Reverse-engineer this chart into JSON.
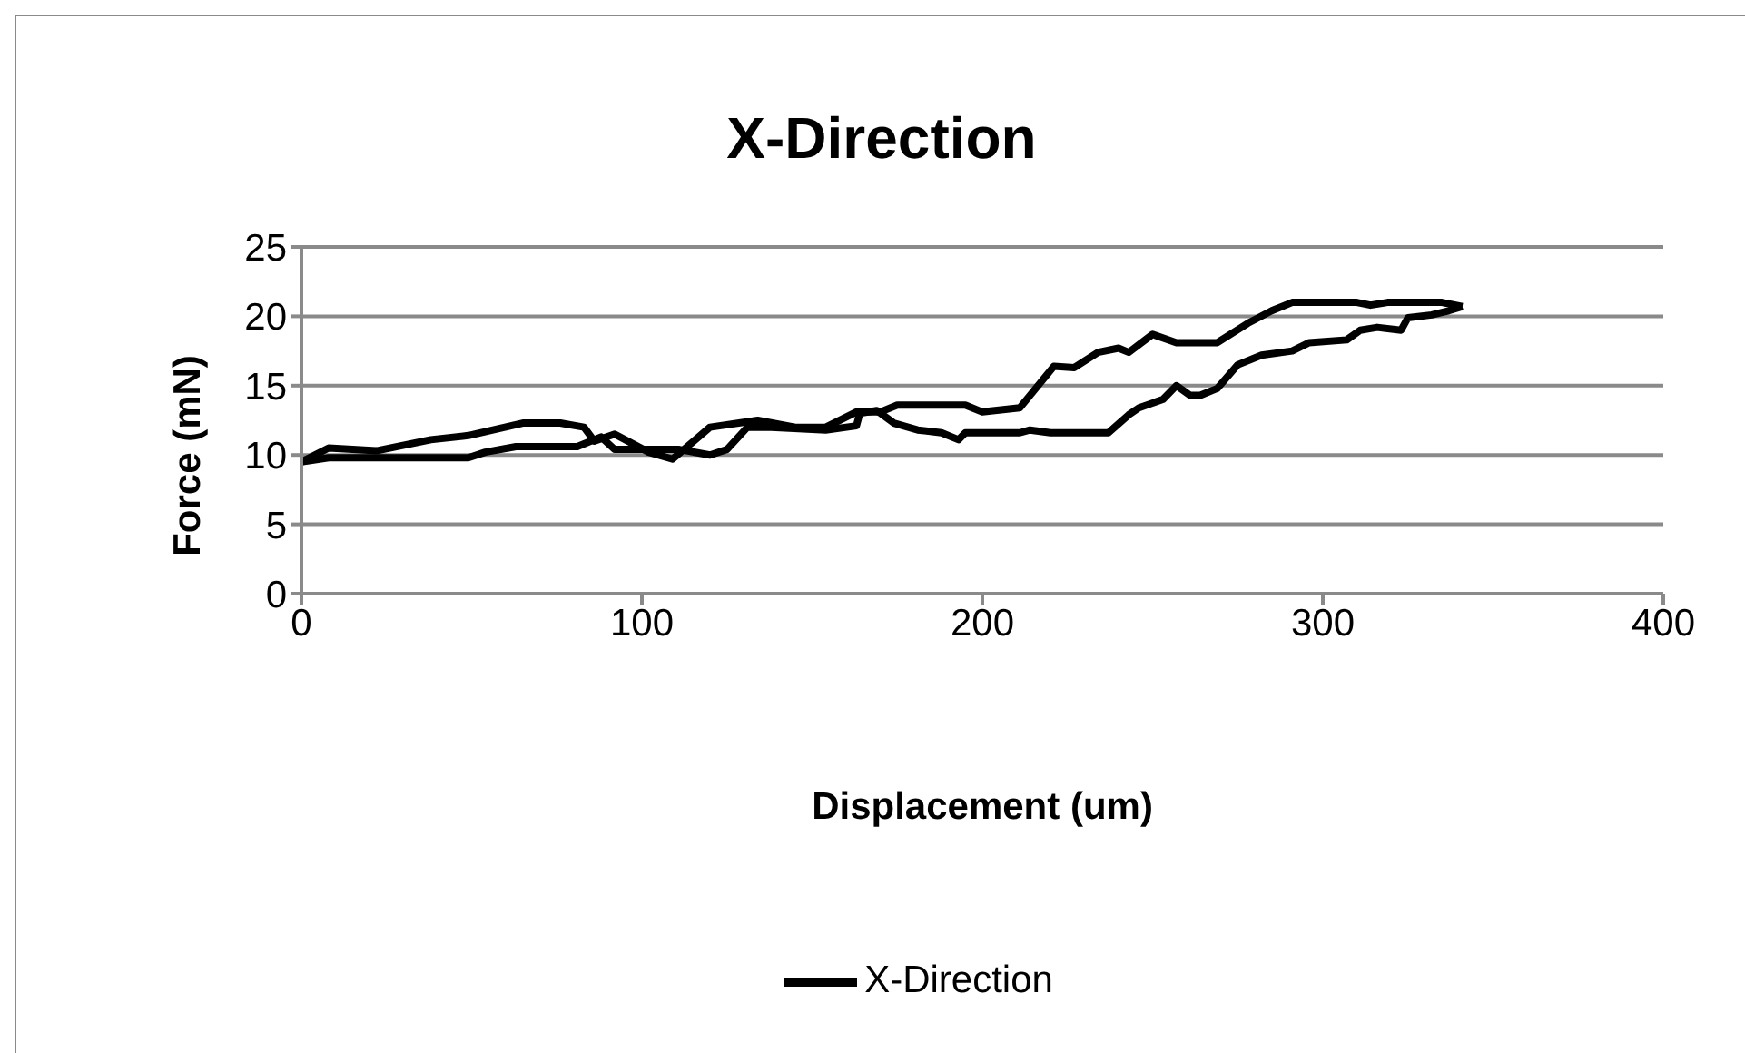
{
  "chart_data": {
    "type": "line",
    "title": "X-Direction",
    "xlabel": "Displacement (um)",
    "ylabel": "Force (mN)",
    "xlim": [
      0,
      400
    ],
    "xticks": [
      0,
      100,
      200,
      300,
      400
    ],
    "ylim": [
      0,
      25
    ],
    "yticks": [
      0,
      5,
      10,
      15,
      20,
      25
    ],
    "grid": "y",
    "legend": "bottom",
    "marker": "none",
    "line_style": "solid",
    "series": [
      {
        "name": "X-Direction",
        "color": "#000000",
        "x": [
          0,
          8,
          22,
          38,
          49,
          65,
          76,
          83,
          86,
          92,
          102,
          109,
          120,
          134,
          145,
          154,
          163,
          170,
          175,
          195,
          200,
          211,
          221,
          227,
          234,
          240,
          243,
          250,
          257,
          269,
          278,
          285,
          291,
          310,
          314,
          319,
          335,
          341
        ],
        "values": [
          9.5,
          10.5,
          10.3,
          11.1,
          11.4,
          12.3,
          12.3,
          12,
          11,
          11.5,
          10.2,
          9.7,
          12,
          12.5,
          12,
          12,
          13.1,
          13.1,
          13.6,
          13.6,
          13.1,
          13.4,
          16.4,
          16.3,
          17.4,
          17.7,
          17.4,
          18.7,
          18.1,
          18.1,
          19.5,
          20.4,
          21,
          21,
          20.8,
          21,
          21,
          20.7
        ]
      },
      {
        "color": "#000000",
        "x": [
          0,
          8,
          26,
          49,
          54,
          63,
          81,
          88,
          92,
          111,
          120,
          125,
          131,
          138,
          154,
          163,
          164,
          169,
          174,
          181,
          188,
          193,
          195,
          211,
          214,
          220,
          237,
          243,
          246,
          253,
          257,
          261,
          264,
          269,
          275,
          282,
          291,
          296,
          307,
          311,
          316,
          323,
          325,
          332,
          337,
          341
        ],
        "values": [
          9.5,
          9.8,
          9.8,
          9.8,
          10.2,
          10.6,
          10.6,
          11.3,
          10.4,
          10.4,
          10,
          10.4,
          12,
          12,
          11.8,
          12.1,
          13,
          13.2,
          12.3,
          11.8,
          11.6,
          11.1,
          11.6,
          11.6,
          11.8,
          11.6,
          11.6,
          12.9,
          13.4,
          14,
          15,
          14.3,
          14.3,
          14.8,
          16.5,
          17.2,
          17.5,
          18.1,
          18.3,
          19,
          19.2,
          19,
          19.9,
          20.1,
          20.4,
          20.7
        ]
      }
    ]
  }
}
